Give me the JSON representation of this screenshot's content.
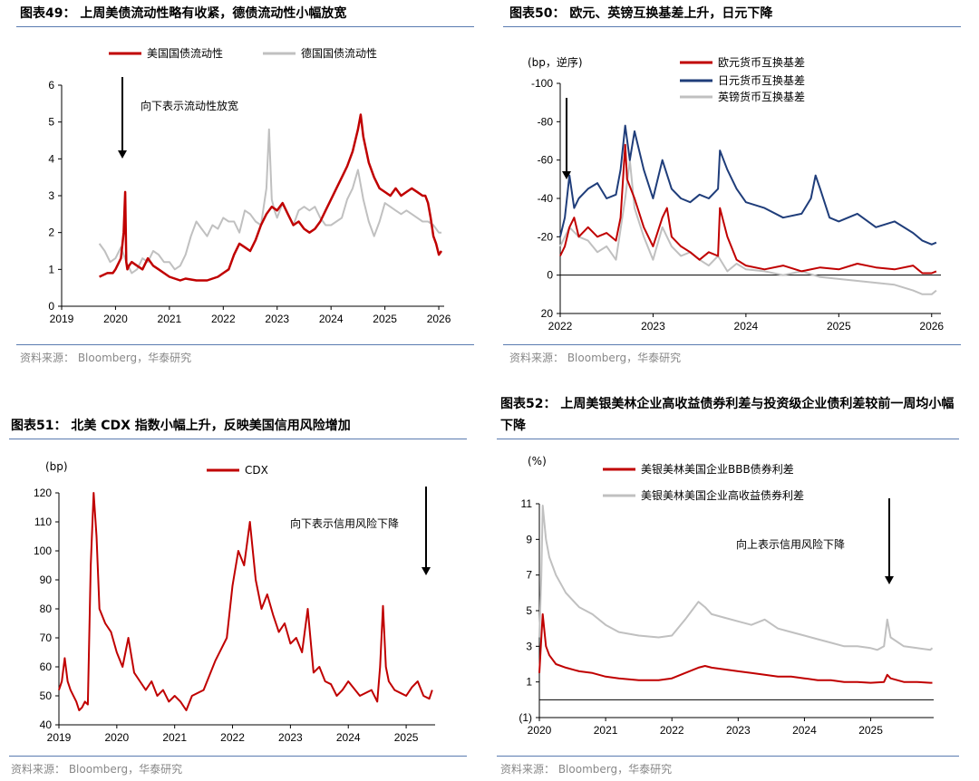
{
  "colors": {
    "red": "#c00000",
    "grey": "#c0c0c0",
    "navy": "#1f3d7a",
    "rule": "#5a7bb0",
    "source": "#888888"
  },
  "chart_data": [
    {
      "id": "c49",
      "type": "line",
      "title": "图表49： 上周美债流动性略有收紧，德债流动性小幅放宽",
      "source": "资料来源： Bloomberg，华泰研究",
      "xlabel": "",
      "ylabel": "",
      "x_ticks": [
        "2019",
        "2020",
        "2021",
        "2022",
        "2023",
        "2024",
        "2025",
        "2026"
      ],
      "x_range": [
        2019,
        2026.1
      ],
      "y_ticks": [
        0,
        1,
        2,
        3,
        4,
        5,
        6
      ],
      "ylim": [
        0,
        6
      ],
      "annotation": "向下表示流动性放宽",
      "series": [
        {
          "name": "美国国债流动性",
          "color": "#c00000",
          "x": [
            2019.7,
            2019.85,
            2019.95,
            2020.0,
            2020.1,
            2020.15,
            2020.18,
            2020.2,
            2020.22,
            2020.25,
            2020.3,
            2020.4,
            2020.5,
            2020.6,
            2020.7,
            2020.8,
            2020.9,
            2021.0,
            2021.1,
            2021.2,
            2021.3,
            2021.5,
            2021.7,
            2021.9,
            2022.0,
            2022.1,
            2022.2,
            2022.3,
            2022.4,
            2022.5,
            2022.6,
            2022.7,
            2022.8,
            2022.9,
            2023.0,
            2023.1,
            2023.2,
            2023.3,
            2023.4,
            2023.5,
            2023.6,
            2023.7,
            2023.8,
            2023.9,
            2024.0,
            2024.1,
            2024.2,
            2024.3,
            2024.4,
            2024.5,
            2024.55,
            2024.6,
            2024.7,
            2024.8,
            2024.9,
            2025.0,
            2025.1,
            2025.2,
            2025.3,
            2025.4,
            2025.5,
            2025.6,
            2025.7,
            2025.75,
            2025.8,
            2025.85,
            2025.9,
            2025.95,
            2026.0,
            2026.05
          ],
          "values": [
            0.8,
            0.9,
            0.9,
            1.0,
            1.3,
            2.0,
            3.1,
            1.2,
            1.0,
            1.1,
            1.2,
            1.1,
            1.0,
            1.3,
            1.1,
            1.0,
            0.9,
            0.8,
            0.75,
            0.7,
            0.75,
            0.7,
            0.7,
            0.8,
            0.9,
            1.0,
            1.4,
            1.7,
            1.6,
            1.5,
            1.8,
            2.2,
            2.5,
            2.7,
            2.6,
            2.8,
            2.5,
            2.2,
            2.3,
            2.1,
            2.0,
            2.1,
            2.3,
            2.6,
            2.9,
            3.2,
            3.5,
            3.8,
            4.2,
            4.8,
            5.2,
            4.6,
            3.9,
            3.5,
            3.2,
            3.1,
            3.0,
            3.2,
            3.0,
            3.1,
            3.2,
            3.1,
            3.0,
            3.0,
            2.8,
            2.4,
            1.9,
            1.7,
            1.4,
            1.5
          ]
        },
        {
          "name": "德国国债流动性",
          "color": "#c0c0c0",
          "x": [
            2019.7,
            2019.8,
            2019.9,
            2020.0,
            2020.1,
            2020.2,
            2020.3,
            2020.4,
            2020.5,
            2020.6,
            2020.7,
            2020.8,
            2020.9,
            2021.0,
            2021.1,
            2021.2,
            2021.3,
            2021.4,
            2021.5,
            2021.6,
            2021.7,
            2021.8,
            2021.9,
            2022.0,
            2022.1,
            2022.2,
            2022.3,
            2022.4,
            2022.5,
            2022.6,
            2022.7,
            2022.8,
            2022.85,
            2022.9,
            2022.95,
            2023.0,
            2023.1,
            2023.2,
            2023.3,
            2023.4,
            2023.5,
            2023.6,
            2023.7,
            2023.8,
            2023.9,
            2024.0,
            2024.1,
            2024.2,
            2024.3,
            2024.4,
            2024.5,
            2024.6,
            2024.7,
            2024.8,
            2024.9,
            2025.0,
            2025.1,
            2025.2,
            2025.3,
            2025.4,
            2025.5,
            2025.6,
            2025.7,
            2025.8,
            2025.9,
            2026.0,
            2026.05
          ],
          "values": [
            1.7,
            1.5,
            1.2,
            1.3,
            1.6,
            1.2,
            0.9,
            1.0,
            1.3,
            1.2,
            1.5,
            1.4,
            1.2,
            1.2,
            1.0,
            1.1,
            1.4,
            1.9,
            2.3,
            2.1,
            1.9,
            2.2,
            2.1,
            2.4,
            2.3,
            2.3,
            2.0,
            2.6,
            2.5,
            2.3,
            2.2,
            3.2,
            4.8,
            2.9,
            2.6,
            2.4,
            2.8,
            2.5,
            2.2,
            2.6,
            2.7,
            2.6,
            2.7,
            2.4,
            2.2,
            2.2,
            2.3,
            2.4,
            2.9,
            3.2,
            3.7,
            2.9,
            2.3,
            1.9,
            2.3,
            2.8,
            2.7,
            2.6,
            2.5,
            2.6,
            2.5,
            2.4,
            2.3,
            2.3,
            2.2,
            2.0,
            2.0
          ]
        }
      ]
    },
    {
      "id": "c50",
      "type": "line",
      "title": "图表50： 欧元、英镑互换基差上升，日元下降",
      "source": "资料来源： Bloomberg，华泰研究",
      "xlabel": "",
      "ylabel": "(bp，逆序)",
      "x_ticks": [
        "2022",
        "2023",
        "2024",
        "2025",
        "2026"
      ],
      "x_range": [
        2022,
        2026.1
      ],
      "y_ticks": [
        -100,
        -80,
        -60,
        -40,
        -20,
        0,
        20
      ],
      "ylim": [
        20,
        -100
      ],
      "y_inverted": true,
      "series": [
        {
          "name": "欧元货币互换基差",
          "color": "#c00000",
          "x": [
            2022.0,
            2022.05,
            2022.1,
            2022.15,
            2022.2,
            2022.3,
            2022.4,
            2022.5,
            2022.6,
            2022.65,
            2022.7,
            2022.72,
            2022.8,
            2022.9,
            2023.0,
            2023.1,
            2023.15,
            2023.2,
            2023.3,
            2023.4,
            2023.5,
            2023.6,
            2023.7,
            2023.72,
            2023.8,
            2023.9,
            2024.0,
            2024.2,
            2024.4,
            2024.6,
            2024.8,
            2025.0,
            2025.2,
            2025.4,
            2025.6,
            2025.8,
            2025.9,
            2026.0,
            2026.05
          ],
          "values": [
            -10,
            -15,
            -25,
            -30,
            -20,
            -25,
            -20,
            -22,
            -18,
            -30,
            -68,
            -50,
            -40,
            -25,
            -15,
            -30,
            -35,
            -20,
            -15,
            -12,
            -8,
            -12,
            -10,
            -35,
            -20,
            -8,
            -5,
            -3,
            -5,
            -2,
            -4,
            -3,
            -6,
            -4,
            -3,
            -5,
            -1,
            -1,
            -2
          ]
        },
        {
          "name": "日元货币互换基差",
          "color": "#1f3d7a",
          "x": [
            2022.0,
            2022.05,
            2022.1,
            2022.15,
            2022.2,
            2022.3,
            2022.4,
            2022.5,
            2022.6,
            2022.65,
            2022.7,
            2022.75,
            2022.8,
            2022.9,
            2023.0,
            2023.1,
            2023.2,
            2023.3,
            2023.4,
            2023.5,
            2023.6,
            2023.7,
            2023.72,
            2023.8,
            2023.9,
            2024.0,
            2024.2,
            2024.4,
            2024.6,
            2024.7,
            2024.75,
            2024.8,
            2024.9,
            2025.0,
            2025.2,
            2025.4,
            2025.6,
            2025.8,
            2025.9,
            2026.0,
            2026.05
          ],
          "values": [
            -20,
            -30,
            -52,
            -35,
            -40,
            -45,
            -48,
            -40,
            -42,
            -55,
            -78,
            -60,
            -75,
            -55,
            -40,
            -60,
            -45,
            -40,
            -38,
            -42,
            -40,
            -45,
            -65,
            -55,
            -45,
            -38,
            -35,
            -30,
            -32,
            -40,
            -52,
            -45,
            -30,
            -28,
            -32,
            -25,
            -28,
            -22,
            -18,
            -16,
            -17
          ]
        },
        {
          "name": "英镑货币互换基差",
          "color": "#c0c0c0",
          "x": [
            2022.0,
            2022.1,
            2022.2,
            2022.3,
            2022.4,
            2022.5,
            2022.6,
            2022.7,
            2022.75,
            2022.8,
            2022.9,
            2023.0,
            2023.1,
            2023.2,
            2023.3,
            2023.4,
            2023.5,
            2023.6,
            2023.7,
            2023.8,
            2023.9,
            2024.0,
            2024.2,
            2024.4,
            2024.6,
            2024.8,
            2025.0,
            2025.2,
            2025.4,
            2025.6,
            2025.8,
            2025.9,
            2026.0,
            2026.05
          ],
          "values": [
            -15,
            -25,
            -20,
            -18,
            -12,
            -15,
            -8,
            -40,
            -60,
            -35,
            -20,
            -8,
            -25,
            -15,
            -10,
            -12,
            -8,
            -5,
            -10,
            -2,
            -6,
            -3,
            -2,
            0,
            -2,
            1,
            2,
            3,
            4,
            5,
            8,
            10,
            10,
            8
          ]
        }
      ]
    },
    {
      "id": "c51",
      "type": "line",
      "title": "图表51： 北美 CDX 指数小幅上升，反映美国信用风险增加",
      "source": "资料来源： Bloomberg，华泰研究",
      "xlabel": "",
      "ylabel": "(bp)",
      "x_ticks": [
        "2019",
        "2020",
        "2021",
        "2022",
        "2023",
        "2024",
        "2025"
      ],
      "x_range": [
        2019,
        2025.5
      ],
      "y_ticks": [
        40,
        50,
        60,
        70,
        80,
        90,
        100,
        110,
        120
      ],
      "ylim": [
        40,
        120
      ],
      "annotation": "向下表示信用风险下降",
      "series": [
        {
          "name": "CDX",
          "color": "#c00000",
          "x": [
            2019.0,
            2019.05,
            2019.1,
            2019.15,
            2019.2,
            2019.3,
            2019.35,
            2019.4,
            2019.45,
            2019.5,
            2019.55,
            2019.6,
            2019.65,
            2019.7,
            2019.8,
            2019.9,
            2020.0,
            2020.1,
            2020.2,
            2020.3,
            2020.4,
            2020.5,
            2020.6,
            2020.7,
            2020.8,
            2020.9,
            2021.0,
            2021.1,
            2021.2,
            2021.3,
            2021.5,
            2021.7,
            2021.9,
            2022.0,
            2022.1,
            2022.2,
            2022.3,
            2022.4,
            2022.5,
            2022.6,
            2022.7,
            2022.8,
            2022.9,
            2023.0,
            2023.1,
            2023.2,
            2023.3,
            2023.4,
            2023.5,
            2023.6,
            2023.7,
            2023.8,
            2023.9,
            2024.0,
            2024.2,
            2024.4,
            2024.5,
            2024.55,
            2024.6,
            2024.65,
            2024.7,
            2024.8,
            2024.9,
            2025.0,
            2025.1,
            2025.2,
            2025.3,
            2025.4,
            2025.45
          ],
          "values": [
            52,
            55,
            63,
            55,
            52,
            48,
            45,
            46,
            48,
            47,
            95,
            120,
            105,
            80,
            75,
            72,
            65,
            60,
            70,
            58,
            55,
            52,
            55,
            50,
            52,
            48,
            50,
            48,
            45,
            50,
            52,
            62,
            70,
            88,
            100,
            95,
            110,
            90,
            80,
            85,
            78,
            72,
            75,
            68,
            70,
            65,
            80,
            58,
            60,
            55,
            54,
            50,
            52,
            55,
            50,
            52,
            48,
            60,
            81,
            60,
            55,
            52,
            51,
            50,
            53,
            55,
            50,
            49,
            52
          ]
        }
      ]
    },
    {
      "id": "c52",
      "type": "line",
      "title": "图表52： 上周美银美林企业高收益债券利差与投资级企业债利差较前一周均小幅下降",
      "source": "资料来源： Bloomberg，华泰研究",
      "xlabel": "",
      "ylabel": "(%)",
      "x_ticks": [
        "2020",
        "2021",
        "2022",
        "2023",
        "2024",
        "2025"
      ],
      "x_range": [
        2020,
        2025.95
      ],
      "y_ticks": [
        "(1)",
        "1",
        "3",
        "5",
        "7",
        "9",
        "11"
      ],
      "y_tick_values": [
        -1,
        1,
        3,
        5,
        7,
        9,
        11
      ],
      "ylim": [
        -1,
        11
      ],
      "annotation": "向上表示信用风险下降",
      "series": [
        {
          "name": "美银美林美国企业BBB债券利差",
          "color": "#c00000",
          "x": [
            2020.0,
            2020.03,
            2020.05,
            2020.1,
            2020.15,
            2020.25,
            2020.4,
            2020.6,
            2020.8,
            2021.0,
            2021.2,
            2021.5,
            2021.8,
            2022.0,
            2022.2,
            2022.4,
            2022.5,
            2022.6,
            2022.8,
            2023.0,
            2023.2,
            2023.4,
            2023.6,
            2023.8,
            2024.0,
            2024.2,
            2024.4,
            2024.6,
            2024.8,
            2025.0,
            2025.2,
            2025.25,
            2025.3,
            2025.5,
            2025.7,
            2025.9,
            2025.93
          ],
          "values": [
            1.5,
            3.5,
            4.8,
            3.0,
            2.5,
            2.0,
            1.8,
            1.6,
            1.5,
            1.3,
            1.2,
            1.1,
            1.1,
            1.2,
            1.5,
            1.8,
            1.9,
            1.8,
            1.7,
            1.6,
            1.5,
            1.4,
            1.3,
            1.3,
            1.2,
            1.1,
            1.1,
            1.0,
            1.0,
            0.95,
            1.0,
            1.4,
            1.2,
            1.0,
            1.0,
            0.95,
            0.95
          ]
        },
        {
          "name": "美银美林美国企业高收益债券利差",
          "color": "#c0c0c0",
          "x": [
            2020.0,
            2020.03,
            2020.05,
            2020.1,
            2020.15,
            2020.25,
            2020.4,
            2020.6,
            2020.8,
            2021.0,
            2021.2,
            2021.5,
            2021.8,
            2022.0,
            2022.2,
            2022.4,
            2022.5,
            2022.6,
            2022.8,
            2023.0,
            2023.2,
            2023.4,
            2023.6,
            2023.8,
            2024.0,
            2024.2,
            2024.4,
            2024.6,
            2024.8,
            2025.0,
            2025.1,
            2025.2,
            2025.25,
            2025.3,
            2025.5,
            2025.7,
            2025.9,
            2025.93
          ],
          "values": [
            3.5,
            7.0,
            10.9,
            9.0,
            8.0,
            7.0,
            6.0,
            5.2,
            4.8,
            4.2,
            3.8,
            3.6,
            3.5,
            3.6,
            4.5,
            5.5,
            5.2,
            4.8,
            4.6,
            4.4,
            4.2,
            4.5,
            4.0,
            3.8,
            3.6,
            3.4,
            3.2,
            3.0,
            3.0,
            2.9,
            2.8,
            3.0,
            4.5,
            3.5,
            3.0,
            2.9,
            2.8,
            2.9
          ]
        }
      ]
    }
  ]
}
